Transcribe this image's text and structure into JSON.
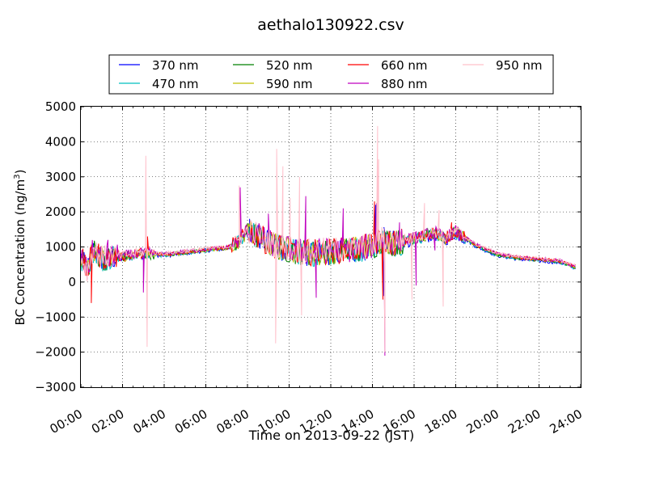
{
  "chart_data": {
    "type": "line",
    "title": "aethalo130922.csv",
    "xlabel": "Time on 2013-09-22 (JST)",
    "ylabel_main": "BC Concentration (ng/m",
    "ylabel_sup": "3",
    "ylabel_close": ")",
    "xlim_hours": [
      0,
      24
    ],
    "ylim": [
      -3000,
      5000
    ],
    "x_ticks": [
      "00:00",
      "02:00",
      "04:00",
      "06:00",
      "08:00",
      "10:00",
      "12:00",
      "14:00",
      "16:00",
      "18:00",
      "20:00",
      "22:00",
      "24:00"
    ],
    "y_ticks": [
      "−3000",
      "−2000",
      "−1000",
      "0",
      "1000",
      "2000",
      "3000",
      "4000",
      "5000"
    ],
    "grid": true,
    "legend_position": "top-center",
    "series": [
      {
        "name": "370 nm",
        "color": "#0000ff",
        "anchors": [
          [
            0.0,
            700
          ],
          [
            0.3,
            300
          ],
          [
            0.6,
            900
          ],
          [
            1.0,
            650
          ],
          [
            2.0,
            700
          ],
          [
            3.0,
            800
          ],
          [
            4.0,
            750
          ],
          [
            5.0,
            820
          ],
          [
            6.0,
            900
          ],
          [
            7.0,
            950
          ],
          [
            7.5,
            1100
          ],
          [
            8.0,
            1500
          ],
          [
            8.5,
            1300
          ],
          [
            9.0,
            1100
          ],
          [
            10.0,
            900
          ],
          [
            11.0,
            800
          ],
          [
            12.0,
            850
          ],
          [
            13.0,
            900
          ],
          [
            14.0,
            1000
          ],
          [
            14.5,
            1200
          ],
          [
            15.0,
            1100
          ],
          [
            16.0,
            1200
          ],
          [
            17.0,
            1350
          ],
          [
            17.5,
            1200
          ],
          [
            18.0,
            1400
          ],
          [
            19.0,
            1000
          ],
          [
            20.0,
            750
          ],
          [
            21.0,
            650
          ],
          [
            22.0,
            600
          ],
          [
            23.0,
            550
          ],
          [
            23.7,
            400
          ]
        ]
      },
      {
        "name": "470 nm",
        "color": "#00bfbf",
        "anchors": [
          [
            0.0,
            700
          ],
          [
            0.3,
            350
          ],
          [
            0.6,
            900
          ],
          [
            1.0,
            650
          ],
          [
            2.0,
            720
          ],
          [
            3.0,
            800
          ],
          [
            4.0,
            760
          ],
          [
            5.0,
            830
          ],
          [
            6.0,
            900
          ],
          [
            7.0,
            950
          ],
          [
            7.5,
            1100
          ],
          [
            8.0,
            1450
          ],
          [
            8.5,
            1300
          ],
          [
            9.0,
            1100
          ],
          [
            10.0,
            900
          ],
          [
            11.0,
            820
          ],
          [
            12.0,
            860
          ],
          [
            13.0,
            900
          ],
          [
            14.0,
            1000
          ],
          [
            14.5,
            1200
          ],
          [
            15.0,
            1100
          ],
          [
            16.0,
            1220
          ],
          [
            17.0,
            1380
          ],
          [
            17.5,
            1220
          ],
          [
            18.0,
            1400
          ],
          [
            19.0,
            1020
          ],
          [
            20.0,
            770
          ],
          [
            21.0,
            670
          ],
          [
            22.0,
            620
          ],
          [
            23.0,
            570
          ],
          [
            23.7,
            420
          ]
        ]
      },
      {
        "name": "520 nm",
        "color": "#008000",
        "anchors": [
          [
            0.0,
            720
          ],
          [
            0.3,
            320
          ],
          [
            0.6,
            920
          ],
          [
            1.0,
            660
          ],
          [
            2.0,
            720
          ],
          [
            3.0,
            810
          ],
          [
            4.0,
            770
          ],
          [
            5.0,
            840
          ],
          [
            6.0,
            910
          ],
          [
            7.0,
            960
          ],
          [
            7.5,
            1100
          ],
          [
            8.0,
            1450
          ],
          [
            8.5,
            1300
          ],
          [
            9.0,
            1100
          ],
          [
            10.0,
            900
          ],
          [
            11.0,
            820
          ],
          [
            12.0,
            870
          ],
          [
            13.0,
            910
          ],
          [
            14.0,
            1000
          ],
          [
            14.5,
            1200
          ],
          [
            15.0,
            1100
          ],
          [
            16.0,
            1230
          ],
          [
            17.0,
            1400
          ],
          [
            17.5,
            1230
          ],
          [
            18.0,
            1420
          ],
          [
            19.0,
            1030
          ],
          [
            20.0,
            780
          ],
          [
            21.0,
            680
          ],
          [
            22.0,
            630
          ],
          [
            23.0,
            580
          ],
          [
            23.7,
            430
          ]
        ]
      },
      {
        "name": "590 nm",
        "color": "#bfbf00",
        "anchors": [
          [
            0.0,
            720
          ],
          [
            0.3,
            330
          ],
          [
            0.6,
            930
          ],
          [
            1.0,
            670
          ],
          [
            2.0,
            730
          ],
          [
            3.0,
            820
          ],
          [
            4.0,
            780
          ],
          [
            5.0,
            850
          ],
          [
            6.0,
            920
          ],
          [
            7.0,
            970
          ],
          [
            7.5,
            1110
          ],
          [
            8.0,
            1460
          ],
          [
            8.5,
            1310
          ],
          [
            9.0,
            1110
          ],
          [
            10.0,
            910
          ],
          [
            11.0,
            830
          ],
          [
            12.0,
            880
          ],
          [
            13.0,
            920
          ],
          [
            14.0,
            1010
          ],
          [
            14.5,
            1210
          ],
          [
            15.0,
            1110
          ],
          [
            16.0,
            1240
          ],
          [
            17.0,
            1410
          ],
          [
            17.5,
            1240
          ],
          [
            18.0,
            1430
          ],
          [
            19.0,
            1040
          ],
          [
            20.0,
            790
          ],
          [
            21.0,
            690
          ],
          [
            22.0,
            640
          ],
          [
            23.0,
            590
          ],
          [
            23.7,
            440
          ]
        ]
      },
      {
        "name": "660 nm",
        "color": "#ff0000",
        "anchors": [
          [
            0.0,
            730
          ],
          [
            0.3,
            300
          ],
          [
            0.6,
            950
          ],
          [
            1.0,
            680
          ],
          [
            2.0,
            740
          ],
          [
            3.0,
            830
          ],
          [
            4.0,
            790
          ],
          [
            5.0,
            860
          ],
          [
            6.0,
            930
          ],
          [
            7.0,
            980
          ],
          [
            7.5,
            1120
          ],
          [
            8.0,
            1470
          ],
          [
            8.5,
            1320
          ],
          [
            9.0,
            1120
          ],
          [
            10.0,
            920
          ],
          [
            11.0,
            840
          ],
          [
            12.0,
            890
          ],
          [
            13.0,
            930
          ],
          [
            14.0,
            1020
          ],
          [
            14.5,
            1220
          ],
          [
            15.0,
            1120
          ],
          [
            16.0,
            1250
          ],
          [
            17.0,
            1420
          ],
          [
            17.5,
            1250
          ],
          [
            18.0,
            1440
          ],
          [
            19.0,
            1050
          ],
          [
            20.0,
            800
          ],
          [
            21.0,
            700
          ],
          [
            22.0,
            650
          ],
          [
            23.0,
            600
          ],
          [
            23.7,
            450
          ]
        ]
      },
      {
        "name": "880 nm",
        "color": "#bf00bf",
        "anchors": [
          [
            0.0,
            740
          ],
          [
            0.3,
            310
          ],
          [
            0.6,
            960
          ],
          [
            1.0,
            690
          ],
          [
            2.0,
            750
          ],
          [
            3.0,
            840
          ],
          [
            4.0,
            800
          ],
          [
            5.0,
            870
          ],
          [
            6.0,
            940
          ],
          [
            7.0,
            990
          ],
          [
            7.5,
            1130
          ],
          [
            8.0,
            1480
          ],
          [
            8.5,
            1330
          ],
          [
            9.0,
            1130
          ],
          [
            10.0,
            930
          ],
          [
            11.0,
            850
          ],
          [
            12.0,
            900
          ],
          [
            13.0,
            940
          ],
          [
            14.0,
            1030
          ],
          [
            14.5,
            1230
          ],
          [
            15.0,
            1130
          ],
          [
            16.0,
            1260
          ],
          [
            17.0,
            1430
          ],
          [
            17.5,
            1260
          ],
          [
            18.0,
            1450
          ],
          [
            19.0,
            1060
          ],
          [
            20.0,
            810
          ],
          [
            21.0,
            710
          ],
          [
            22.0,
            660
          ],
          [
            23.0,
            610
          ],
          [
            23.7,
            460
          ]
        ]
      },
      {
        "name": "950 nm",
        "color": "#ffc0cb",
        "anchors": [
          [
            0.0,
            750
          ],
          [
            0.3,
            320
          ],
          [
            0.6,
            970
          ],
          [
            1.0,
            700
          ],
          [
            2.0,
            760
          ],
          [
            3.0,
            850
          ],
          [
            4.0,
            810
          ],
          [
            5.0,
            880
          ],
          [
            6.0,
            950
          ],
          [
            7.0,
            1000
          ],
          [
            7.5,
            1140
          ],
          [
            8.0,
            1490
          ],
          [
            8.5,
            1340
          ],
          [
            9.0,
            1140
          ],
          [
            10.0,
            940
          ],
          [
            11.0,
            860
          ],
          [
            12.0,
            910
          ],
          [
            13.0,
            950
          ],
          [
            14.0,
            1040
          ],
          [
            14.5,
            1240
          ],
          [
            15.0,
            1140
          ],
          [
            16.0,
            1270
          ],
          [
            17.0,
            1440
          ],
          [
            17.5,
            1270
          ],
          [
            18.0,
            1460
          ],
          [
            19.0,
            1070
          ],
          [
            20.0,
            820
          ],
          [
            21.0,
            720
          ],
          [
            22.0,
            670
          ],
          [
            23.0,
            620
          ],
          [
            23.7,
            470
          ]
        ]
      }
    ],
    "spikes": [
      {
        "series": "950 nm",
        "points": [
          [
            3.12,
            3600
          ],
          [
            3.18,
            -1850
          ],
          [
            7.6,
            2750
          ],
          [
            9.4,
            3800
          ],
          [
            9.35,
            -1750
          ],
          [
            9.7,
            3300
          ],
          [
            10.05,
            2400
          ],
          [
            10.5,
            3000
          ],
          [
            10.6,
            -950
          ],
          [
            14.25,
            4450
          ],
          [
            14.3,
            3500
          ],
          [
            14.6,
            -2000
          ],
          [
            15.9,
            -500
          ],
          [
            16.5,
            2250
          ],
          [
            17.2,
            2050
          ],
          [
            17.4,
            -700
          ]
        ]
      },
      {
        "series": "880 nm",
        "points": [
          [
            1.3,
            1200
          ],
          [
            3.0,
            -300
          ],
          [
            7.65,
            2700
          ],
          [
            9.0,
            1950
          ],
          [
            10.8,
            2450
          ],
          [
            11.3,
            -450
          ],
          [
            12.6,
            2100
          ],
          [
            14.2,
            2250
          ],
          [
            14.6,
            -2100
          ],
          [
            15.3,
            1700
          ],
          [
            16.1,
            -100
          ],
          [
            17.0,
            900
          ],
          [
            18.2,
            1200
          ]
        ]
      },
      {
        "series": "660 nm",
        "points": [
          [
            0.5,
            -600
          ],
          [
            3.2,
            1300
          ],
          [
            8.2,
            1450
          ],
          [
            14.1,
            2300
          ],
          [
            14.5,
            -500
          ],
          [
            17.8,
            1700
          ]
        ]
      },
      {
        "series": "370 nm",
        "points": [
          [
            8.1,
            1800
          ],
          [
            14.15,
            2200
          ],
          [
            14.55,
            -400
          ]
        ]
      }
    ]
  }
}
